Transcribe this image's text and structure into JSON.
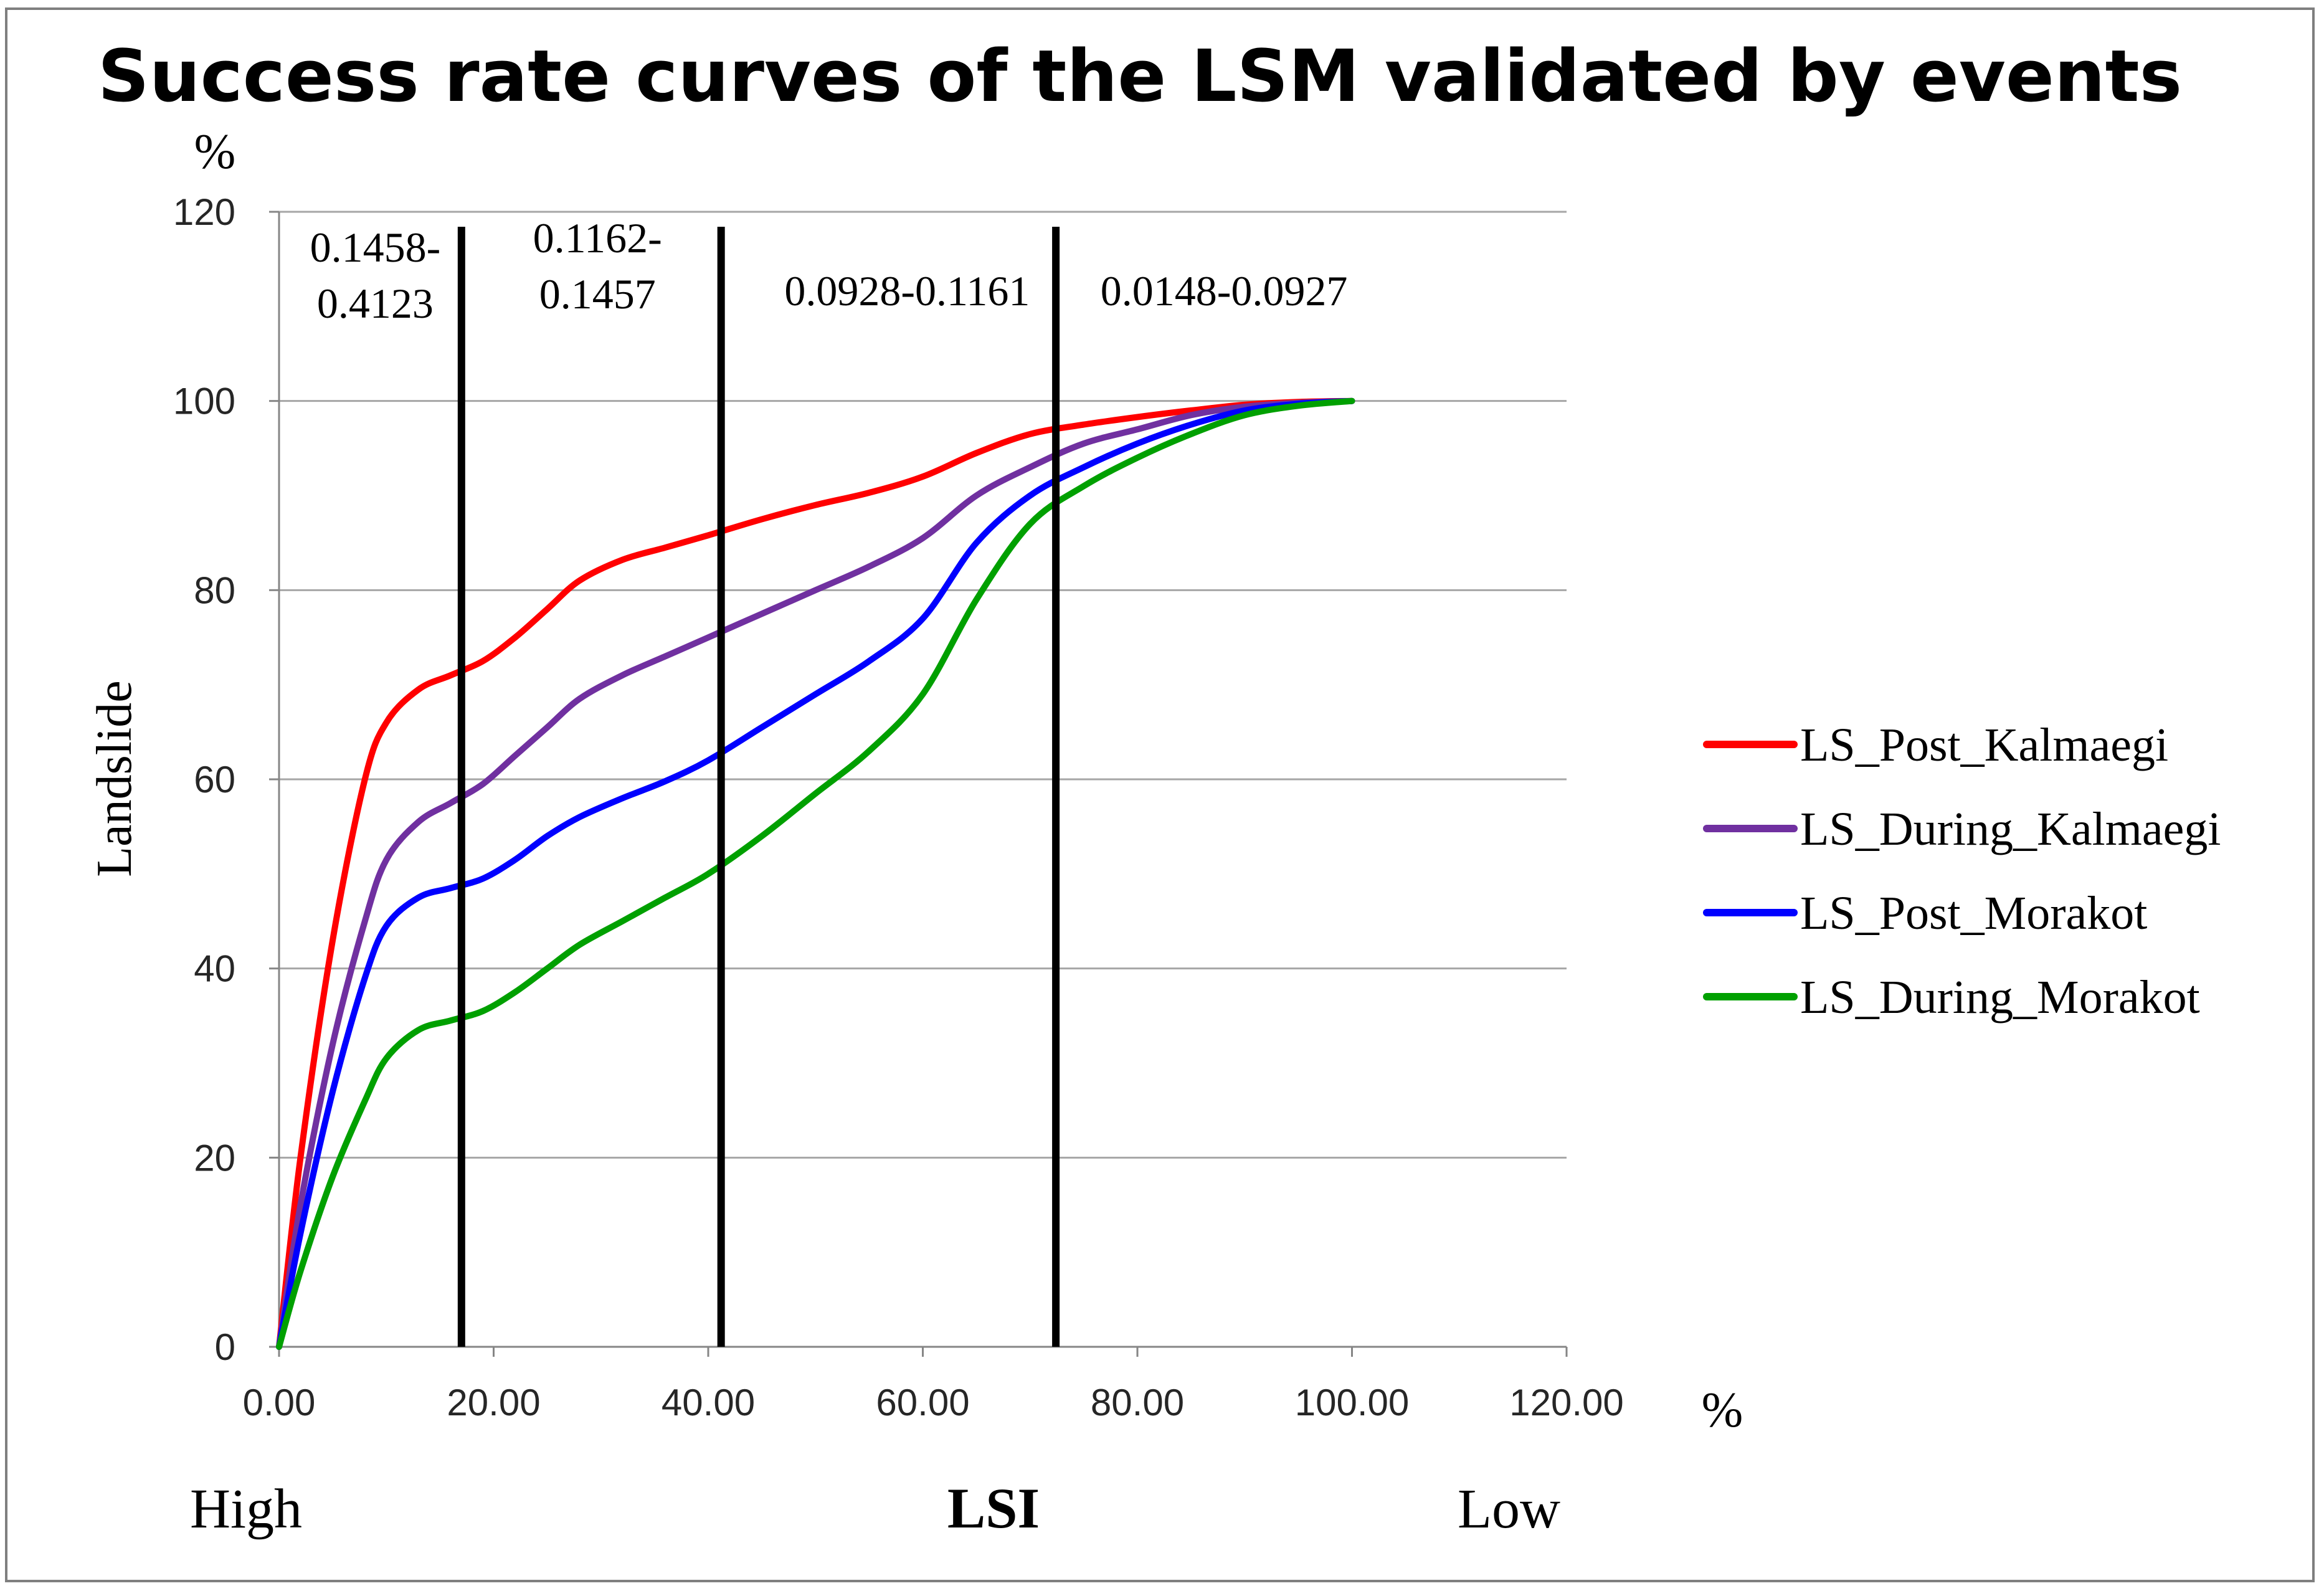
{
  "chart_data": {
    "type": "line",
    "title": "Success rate curves of the LSM validated by events",
    "ylabel": "Landslide",
    "y_unit": "%",
    "xlabel": "LSI",
    "x_unit": "%",
    "x_left_label": "High",
    "x_right_label": "Low",
    "xlim": [
      0,
      120
    ],
    "ylim": [
      0,
      120
    ],
    "x_ticks": [
      0,
      20,
      40,
      60,
      80,
      100,
      120
    ],
    "x_tick_labels": [
      "0.00",
      "20.00",
      "40.00",
      "60.00",
      "80.00",
      "100.00",
      "120.00"
    ],
    "y_ticks": [
      0,
      20,
      40,
      60,
      80,
      100,
      120
    ],
    "y_tick_labels": [
      "0",
      "20",
      "40",
      "60",
      "80",
      "100",
      "120"
    ],
    "grid": "horizontal",
    "legend_position": "right",
    "dividers": [
      {
        "x": 17.0,
        "label_lines": [
          "0.1458-",
          "0.4123"
        ]
      },
      {
        "x": 41.2,
        "label_lines": [
          "0.1162-",
          "0.1457"
        ]
      },
      {
        "x": 72.4,
        "label_lines": [
          "0.0928-0.1161"
        ]
      },
      {
        "x": null,
        "label_lines": [
          "0.0148-0.0927"
        ]
      }
    ],
    "series": [
      {
        "name": "LS_Post_Kalmaegi",
        "color": "#ff0000",
        "points": [
          [
            0,
            0
          ],
          [
            2,
            20
          ],
          [
            5,
            43
          ],
          [
            8,
            60
          ],
          [
            10,
            66
          ],
          [
            13,
            69.5
          ],
          [
            16,
            71
          ],
          [
            19,
            72.5
          ],
          [
            22,
            75
          ],
          [
            25,
            78
          ],
          [
            28,
            81
          ],
          [
            32,
            83.2
          ],
          [
            36,
            84.5
          ],
          [
            40,
            85.8
          ],
          [
            45,
            87.5
          ],
          [
            50,
            89
          ],
          [
            55,
            90.3
          ],
          [
            60,
            92
          ],
          [
            65,
            94.5
          ],
          [
            70,
            96.5
          ],
          [
            75,
            97.5
          ],
          [
            80,
            98.3
          ],
          [
            85,
            99
          ],
          [
            90,
            99.6
          ],
          [
            95,
            99.9
          ],
          [
            100,
            100
          ]
        ]
      },
      {
        "name": "LS_During_Kalmaegi",
        "color": "#7030a0",
        "points": [
          [
            0,
            0
          ],
          [
            2,
            15
          ],
          [
            5,
            32
          ],
          [
            8,
            45
          ],
          [
            10,
            51.5
          ],
          [
            13,
            55.5
          ],
          [
            16,
            57.5
          ],
          [
            19,
            59.5
          ],
          [
            22,
            62.5
          ],
          [
            25,
            65.5
          ],
          [
            28,
            68.5
          ],
          [
            32,
            71
          ],
          [
            36,
            73
          ],
          [
            40,
            75
          ],
          [
            45,
            77.5
          ],
          [
            50,
            80
          ],
          [
            55,
            82.5
          ],
          [
            60,
            85.5
          ],
          [
            65,
            90
          ],
          [
            70,
            93
          ],
          [
            75,
            95.5
          ],
          [
            80,
            97
          ],
          [
            85,
            98.5
          ],
          [
            90,
            99.4
          ],
          [
            95,
            99.8
          ],
          [
            100,
            100
          ]
        ]
      },
      {
        "name": "LS_Post_Morakot",
        "color": "#0000ff",
        "points": [
          [
            0,
            0
          ],
          [
            2,
            12
          ],
          [
            5,
            27
          ],
          [
            8,
            39
          ],
          [
            10,
            44.5
          ],
          [
            13,
            47.5
          ],
          [
            16,
            48.5
          ],
          [
            19,
            49.5
          ],
          [
            22,
            51.5
          ],
          [
            25,
            54
          ],
          [
            28,
            56
          ],
          [
            32,
            58
          ],
          [
            36,
            59.8
          ],
          [
            40,
            62
          ],
          [
            45,
            65.5
          ],
          [
            50,
            69
          ],
          [
            55,
            72.5
          ],
          [
            60,
            77
          ],
          [
            65,
            85
          ],
          [
            70,
            90
          ],
          [
            75,
            93
          ],
          [
            80,
            95.5
          ],
          [
            85,
            97.5
          ],
          [
            90,
            99
          ],
          [
            95,
            99.7
          ],
          [
            100,
            100
          ]
        ]
      },
      {
        "name": "LS_During_Morakot",
        "color": "#00a000",
        "points": [
          [
            0,
            0
          ],
          [
            2,
            8
          ],
          [
            5,
            18
          ],
          [
            8,
            26
          ],
          [
            10,
            30.5
          ],
          [
            13,
            33.5
          ],
          [
            16,
            34.5
          ],
          [
            19,
            35.5
          ],
          [
            22,
            37.5
          ],
          [
            25,
            40
          ],
          [
            28,
            42.5
          ],
          [
            32,
            45
          ],
          [
            36,
            47.5
          ],
          [
            40,
            50
          ],
          [
            45,
            54
          ],
          [
            50,
            58.5
          ],
          [
            55,
            63
          ],
          [
            60,
            69
          ],
          [
            65,
            79
          ],
          [
            70,
            87
          ],
          [
            75,
            91
          ],
          [
            80,
            94
          ],
          [
            85,
            96.5
          ],
          [
            90,
            98.5
          ],
          [
            95,
            99.5
          ],
          [
            100,
            100
          ]
        ]
      }
    ]
  }
}
